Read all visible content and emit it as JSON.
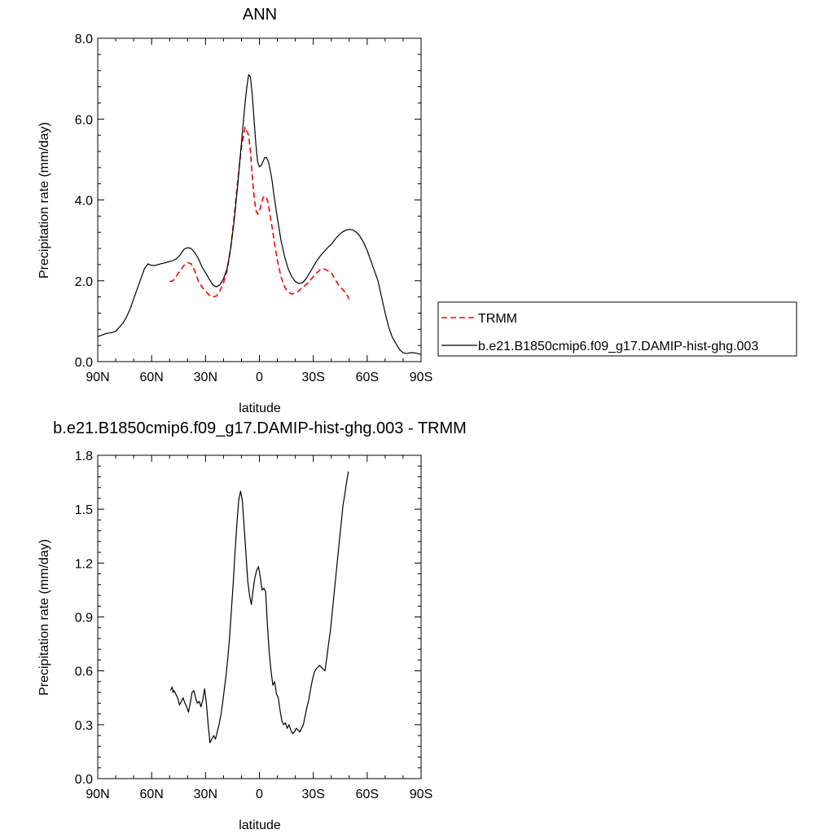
{
  "chart_data": [
    {
      "type": "line",
      "title": "ANN",
      "xlabel": "latitude",
      "ylabel": "Precipitation rate (mm/day)",
      "xlim": [
        90,
        -90
      ],
      "ylim": [
        0,
        8
      ],
      "x_ticks": [
        90,
        60,
        30,
        0,
        -30,
        -60,
        -90
      ],
      "x_tick_labels": [
        "90N",
        "60N",
        "30N",
        "0",
        "30S",
        "60S",
        "90S"
      ],
      "y_ticks": [
        0,
        2,
        4,
        6,
        8
      ],
      "y_tick_labels": [
        "0.0",
        "2.0",
        "4.0",
        "6.0",
        "8.0"
      ],
      "legend_position": "right",
      "series": [
        {
          "name": "TRMM",
          "color": "#ff0000",
          "style": "dashed",
          "x": [
            50,
            48,
            45,
            42,
            40,
            38,
            36,
            34,
            32,
            30,
            28,
            26,
            24,
            22,
            20,
            18,
            16,
            14,
            12,
            10,
            8,
            6,
            5,
            4,
            3,
            2,
            1,
            0,
            -1,
            -2,
            -3,
            -4,
            -5,
            -6,
            -7,
            -8,
            -10,
            -12,
            -14,
            -16,
            -18,
            -20,
            -22,
            -24,
            -26,
            -28,
            -30,
            -32,
            -34,
            -36,
            -38,
            -40,
            -42,
            -44,
            -46,
            -48,
            -50
          ],
          "y": [
            1.98,
            2.0,
            2.2,
            2.38,
            2.45,
            2.42,
            2.25,
            2.0,
            1.85,
            1.75,
            1.65,
            1.6,
            1.62,
            1.75,
            1.95,
            2.25,
            2.8,
            3.6,
            4.5,
            5.3,
            5.8,
            5.6,
            5.2,
            4.6,
            4.1,
            3.75,
            3.65,
            3.7,
            3.9,
            4.05,
            4.1,
            4.05,
            3.9,
            3.6,
            3.35,
            3.05,
            2.5,
            2.1,
            1.85,
            1.72,
            1.67,
            1.7,
            1.75,
            1.85,
            1.9,
            2.0,
            2.1,
            2.2,
            2.28,
            2.3,
            2.25,
            2.2,
            2.05,
            1.9,
            1.8,
            1.7,
            1.55
          ]
        },
        {
          "name": "b.e21.B1850cmip6.f09_g17.DAMIP-hist-ghg.003",
          "color": "#000000",
          "style": "solid",
          "x": [
            90,
            88,
            85,
            82,
            80,
            78,
            76,
            74,
            72,
            70,
            68,
            66,
            64,
            62,
            60,
            58,
            55,
            52,
            50,
            48,
            46,
            44,
            42,
            40,
            38,
            36,
            34,
            32,
            30,
            28,
            26,
            24,
            22,
            20,
            18,
            16,
            14,
            12,
            10,
            8,
            7,
            6,
            5,
            4,
            3,
            2,
            1,
            0,
            -1,
            -2,
            -3,
            -4,
            -5,
            -6,
            -7,
            -8,
            -10,
            -12,
            -14,
            -16,
            -18,
            -20,
            -22,
            -24,
            -26,
            -28,
            -30,
            -32,
            -34,
            -36,
            -38,
            -40,
            -42,
            -44,
            -46,
            -48,
            -50,
            -52,
            -54,
            -56,
            -58,
            -60,
            -62,
            -64,
            -66,
            -68,
            -70,
            -72,
            -74,
            -76,
            -78,
            -80,
            -82,
            -84,
            -86,
            -88,
            -90
          ],
          "y": [
            0.62,
            0.65,
            0.7,
            0.72,
            0.75,
            0.85,
            0.95,
            1.1,
            1.3,
            1.55,
            1.8,
            2.05,
            2.3,
            2.42,
            2.38,
            2.38,
            2.42,
            2.45,
            2.48,
            2.5,
            2.55,
            2.65,
            2.78,
            2.82,
            2.8,
            2.7,
            2.55,
            2.35,
            2.2,
            2.05,
            1.9,
            1.85,
            1.9,
            2.05,
            2.3,
            2.8,
            3.5,
            4.4,
            5.4,
            6.4,
            6.8,
            7.1,
            7.05,
            6.6,
            6.0,
            5.4,
            4.95,
            4.82,
            4.85,
            4.95,
            5.05,
            5.05,
            4.95,
            4.75,
            4.5,
            4.15,
            3.55,
            3.0,
            2.6,
            2.3,
            2.1,
            1.98,
            1.93,
            1.95,
            2.05,
            2.2,
            2.35,
            2.5,
            2.62,
            2.72,
            2.82,
            2.9,
            3.02,
            3.12,
            3.2,
            3.25,
            3.27,
            3.26,
            3.2,
            3.1,
            2.95,
            2.75,
            2.5,
            2.25,
            2.0,
            1.6,
            1.2,
            0.85,
            0.6,
            0.45,
            0.3,
            0.22,
            0.2,
            0.22,
            0.22,
            0.2,
            0.18
          ]
        }
      ]
    },
    {
      "type": "line",
      "title": "b.e21.B1850cmip6.f09_g17.DAMIP-hist-ghg.003 - TRMM",
      "xlabel": "latitude",
      "ylabel": "Precipitation rate (mm/day)",
      "xlim": [
        90,
        -90
      ],
      "ylim": [
        0,
        1.8
      ],
      "x_ticks": [
        90,
        60,
        30,
        0,
        -30,
        -60,
        -90
      ],
      "x_tick_labels": [
        "90N",
        "60N",
        "30N",
        "0",
        "30S",
        "60S",
        "90S"
      ],
      "y_ticks": [
        0,
        0.3,
        0.6,
        0.9,
        1.2,
        1.5,
        1.8
      ],
      "y_tick_labels": [
        "0.0",
        "0.3",
        "0.6",
        "0.9",
        "1.2",
        "1.5",
        "1.8"
      ],
      "series": [
        {
          "name": "",
          "color": "#000000",
          "style": "solid",
          "x": [
            49.5,
            48.5,
            48,
            47.5,
            46.5,
            45.5,
            44.5,
            43.5,
            42.5,
            41.5,
            40.5,
            39.5,
            38.5,
            37.5,
            36.5,
            35.5,
            34.5,
            33.5,
            32.5,
            31.5,
            30.5,
            29.5,
            28.5,
            27.5,
            26.5,
            25.5,
            24.5,
            23.5,
            22.5,
            21.5,
            20.5,
            19.5,
            18.5,
            17.5,
            16.5,
            15.5,
            14.5,
            13.5,
            12.5,
            11.5,
            10.5,
            9.5,
            8.5,
            7.5,
            6.5,
            5.5,
            4.5,
            3.5,
            2.5,
            1.5,
            0.5,
            -0.5,
            -1.5,
            -2.5,
            -3.5,
            -4.5,
            -5.5,
            -6.5,
            -7.5,
            -8.5,
            -9.5,
            -10.5,
            -11.5,
            -12.5,
            -13.5,
            -14.5,
            -15.5,
            -16.5,
            -17.5,
            -18.5,
            -19.5,
            -20.5,
            -21.5,
            -22.5,
            -23.5,
            -24.5,
            -25.5,
            -26.5,
            -27.5,
            -28.5,
            -29.5,
            -30.5,
            -31.5,
            -32.5,
            -33.5,
            -34.5,
            -35.5,
            -36.5,
            -37.5,
            -38.5,
            -39.5,
            -40.5,
            -41.5,
            -42.5,
            -43.5,
            -44.5,
            -45.5,
            -46.5,
            -47.5,
            -48.5,
            -49.5
          ],
          "y": [
            0.49,
            0.51,
            0.48,
            0.49,
            0.47,
            0.45,
            0.41,
            0.43,
            0.45,
            0.42,
            0.4,
            0.37,
            0.42,
            0.48,
            0.49,
            0.45,
            0.42,
            0.43,
            0.4,
            0.44,
            0.5,
            0.42,
            0.3,
            0.2,
            0.22,
            0.24,
            0.22,
            0.26,
            0.3,
            0.35,
            0.42,
            0.5,
            0.58,
            0.68,
            0.8,
            0.95,
            1.1,
            1.27,
            1.42,
            1.55,
            1.6,
            1.55,
            1.4,
            1.25,
            1.1,
            1.02,
            0.97,
            1.05,
            1.12,
            1.16,
            1.18,
            1.12,
            1.05,
            1.06,
            1.04,
            0.85,
            0.7,
            0.6,
            0.52,
            0.54,
            0.47,
            0.45,
            0.38,
            0.32,
            0.3,
            0.31,
            0.28,
            0.3,
            0.27,
            0.25,
            0.26,
            0.28,
            0.27,
            0.26,
            0.28,
            0.3,
            0.35,
            0.4,
            0.44,
            0.5,
            0.55,
            0.59,
            0.61,
            0.62,
            0.63,
            0.62,
            0.61,
            0.6,
            0.67,
            0.75,
            0.82,
            0.92,
            1.02,
            1.12,
            1.22,
            1.32,
            1.42,
            1.52,
            1.58,
            1.65,
            1.71
          ]
        }
      ]
    }
  ],
  "legend": {
    "entries": [
      {
        "label": "TRMM",
        "color": "#ff0000",
        "style": "dashed"
      },
      {
        "label": "b.e21.B1850cmip6.f09_g17.DAMIP-hist-ghg.003",
        "color": "#000000",
        "style": "solid"
      }
    ]
  }
}
